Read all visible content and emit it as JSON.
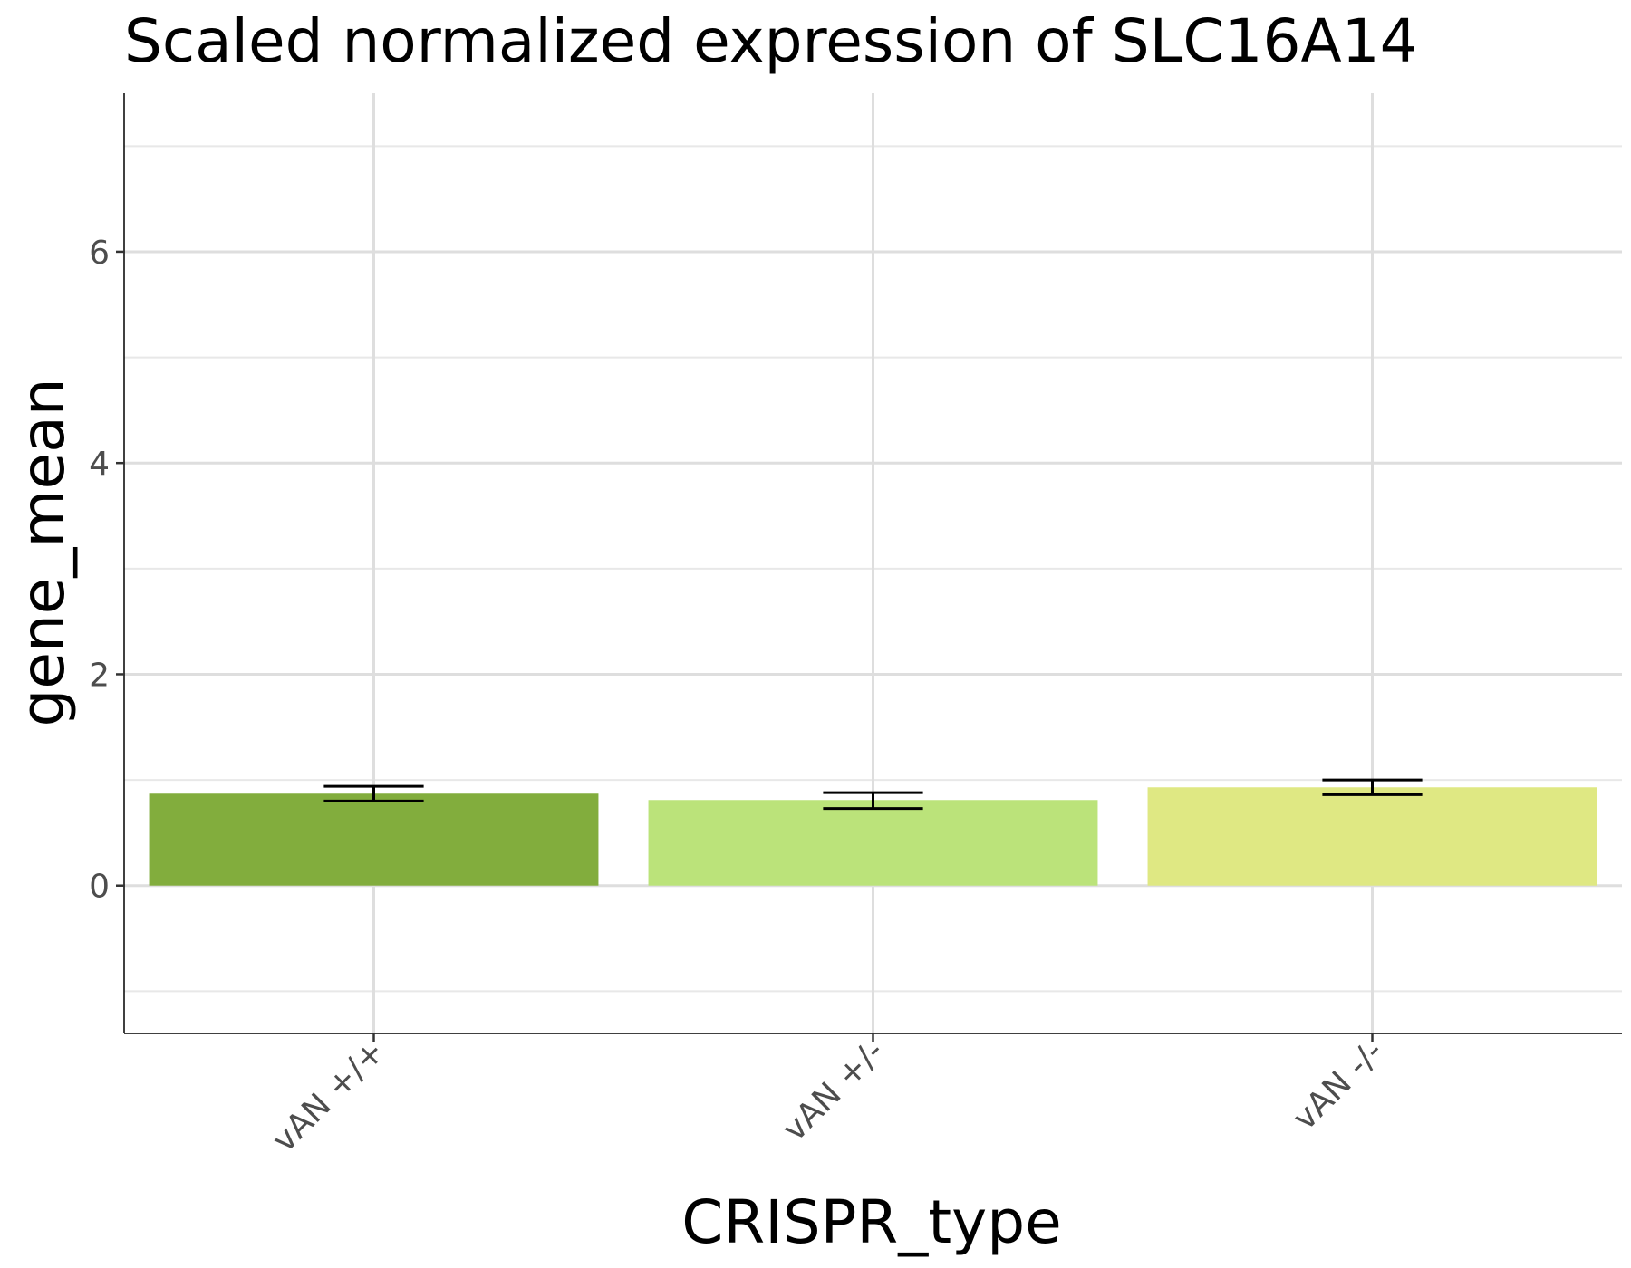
{
  "chart_data": {
    "type": "bar",
    "title": "Scaled normalized expression of SLC16A14",
    "xlabel": "CRISPR_type",
    "ylabel": "gene_mean",
    "categories": [
      "vAN +/+",
      "vAN +/-",
      "vAN -/-"
    ],
    "values": [
      0.87,
      0.81,
      0.93
    ],
    "error_bars": [
      {
        "low": 0.8,
        "high": 0.94
      },
      {
        "low": 0.73,
        "high": 0.88
      },
      {
        "low": 0.86,
        "high": 1.0
      }
    ],
    "colors": [
      "#82ad3d",
      "#bbe37a",
      "#dfe883"
    ],
    "ylim": [
      -1.4,
      7.5
    ],
    "yticks": [
      0,
      2,
      4,
      6
    ],
    "ytick_labels": [
      "0",
      "2",
      "4",
      "6"
    ],
    "y_minor_gridlines": [
      -1,
      1,
      3,
      5,
      7
    ],
    "grid": true,
    "legend": "none"
  }
}
